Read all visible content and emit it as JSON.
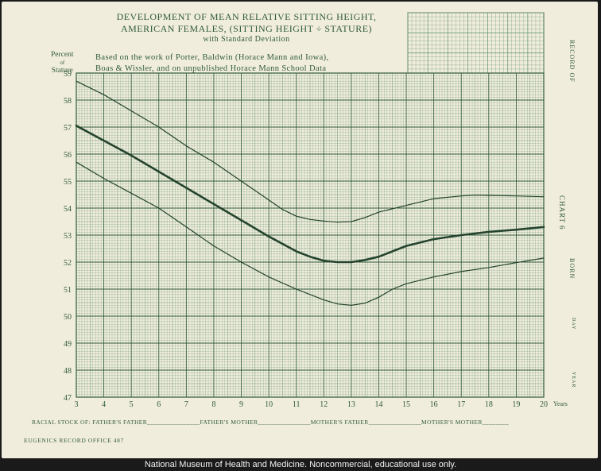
{
  "chart_data": {
    "type": "line",
    "title": "Development of Mean Relative Sitting Height, American Females, (Sitting Height ÷ Stature)",
    "subtitle": "with Standard Deviation",
    "source_line_1": "Based on the work of Porter, Baldwin (Horace Mann and Iowa),",
    "source_line_2": "Boas & Wissler, and on unpublished Horace Mann School Data",
    "ylabel_line1": "Percent",
    "ylabel_line2": "of",
    "ylabel_line3": "Stature",
    "xlabel": "Years",
    "xlim": [
      3,
      20
    ],
    "ylim": [
      47,
      59
    ],
    "x_ticks": [
      3,
      4,
      5,
      6,
      7,
      8,
      9,
      10,
      11,
      12,
      13,
      14,
      15,
      16,
      17,
      18,
      19,
      20
    ],
    "y_ticks": [
      47,
      48,
      49,
      50,
      51,
      52,
      53,
      54,
      55,
      56,
      57,
      58,
      59
    ],
    "grid": true,
    "series": [
      {
        "role": "upper",
        "x": [
          3,
          4,
          5,
          6,
          7,
          8,
          9,
          10,
          10.5,
          11,
          11.5,
          12,
          12.5,
          13,
          13.5,
          14,
          15,
          16,
          17,
          17.5,
          18,
          19,
          20
        ],
        "values": [
          58.7,
          58.2,
          57.6,
          57.0,
          56.3,
          55.7,
          55.0,
          54.3,
          53.95,
          53.7,
          53.58,
          53.52,
          53.48,
          53.5,
          53.65,
          53.85,
          54.1,
          54.35,
          54.45,
          54.48,
          54.47,
          54.45,
          54.42
        ]
      },
      {
        "role": "mean",
        "x": [
          3,
          4,
          5,
          6,
          7,
          8,
          9,
          10,
          11,
          11.5,
          12,
          12.5,
          13,
          13.5,
          14,
          15,
          16,
          17,
          18,
          19,
          20
        ],
        "values": [
          57.05,
          56.5,
          55.95,
          55.35,
          54.75,
          54.15,
          53.55,
          52.95,
          52.4,
          52.2,
          52.05,
          52.0,
          52.0,
          52.08,
          52.2,
          52.6,
          52.85,
          53.0,
          53.12,
          53.2,
          53.3
        ]
      },
      {
        "role": "lower",
        "x": [
          3,
          4,
          5,
          6,
          7,
          8,
          9,
          10,
          11,
          12,
          12.5,
          13,
          13.5,
          14,
          14.5,
          15,
          16,
          17,
          18,
          19,
          20
        ],
        "values": [
          55.7,
          55.1,
          54.55,
          54.0,
          53.3,
          52.6,
          52.0,
          51.45,
          51.0,
          50.6,
          50.45,
          50.4,
          50.48,
          50.7,
          51.0,
          51.2,
          51.45,
          51.65,
          51.8,
          51.98,
          52.15
        ]
      }
    ]
  },
  "side": {
    "record_of": "RECORD OF",
    "chart_no": "CHART 6",
    "born": "BORN",
    "day": "DAY",
    "year": "YEAR"
  },
  "footer": {
    "racial_stock": "RACIAL STOCK OF:  FATHER'S FATHER________________FATHER'S MOTHER________________MOTHER'S FATHER________________MOTHER'S MOTHER________",
    "office": "EUGENICS RECORD OFFICE 487"
  },
  "credit": "National Museum of Health and Medicine. Noncommercial, educational use only.",
  "colors": {
    "ink": "#2f5a3c",
    "grid": "#6f9a7b",
    "paper": "#f1eddd"
  }
}
